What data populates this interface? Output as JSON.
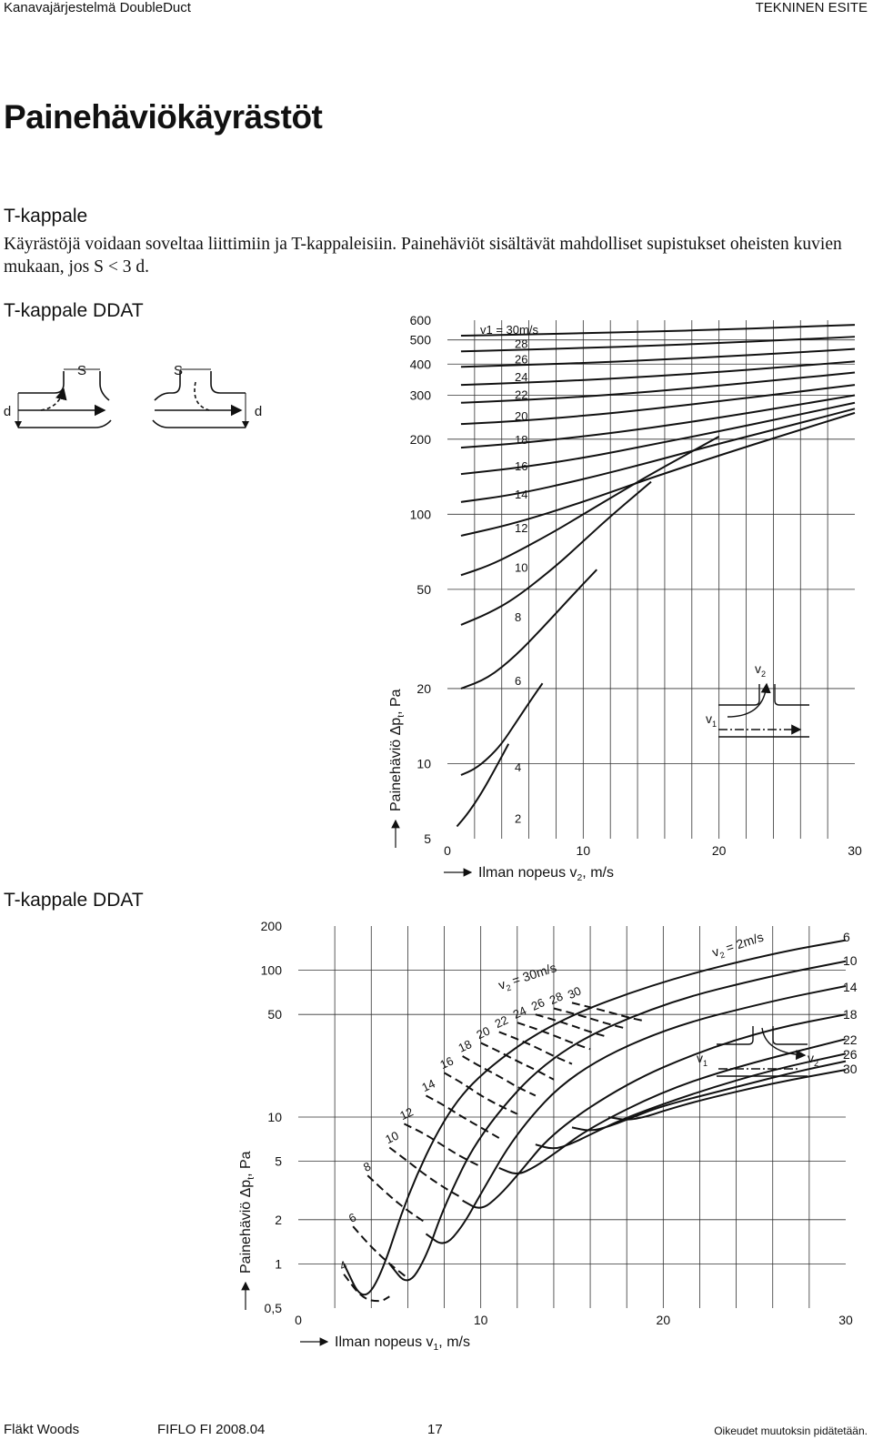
{
  "header": {
    "left": "Kanavajärjestelmä DoubleDuct",
    "right": "TEKNINEN ESITE"
  },
  "title": "Painehäviökäyrästöt",
  "section_title": "T-kappale",
  "intro": "Käyrästöjä voidaan soveltaa liittimiin ja T-kappaleisiin. Painehäviöt sisältävät mahdolliset supistukset oheisten kuvien mukaan, jos S < 3 d.",
  "subtitle_1": "T-kappale DDAT",
  "subtitle_2": "T-kappale DDAT",
  "diagram_labels": {
    "s": "S",
    "d": "d"
  },
  "footer": {
    "brand": "Fläkt Woods",
    "code": "FIFLO  FI  2008.04",
    "page": "17",
    "rights": "Oikeudet muutoksin pidätetään."
  },
  "chart_data": [
    {
      "type": "line",
      "scale": "y-log",
      "xlabel": "Ilman nopeus v",
      "xlabel_sub": "2",
      "xlabel_suffix": ", m/s",
      "ylabel": "Painehäviö Δp",
      "ylabel_sub": "t",
      "ylabel_suffix": ", Pa",
      "xlim": [
        0,
        30
      ],
      "ylim": [
        5,
        600
      ],
      "xticks": [
        "0",
        "10",
        "20",
        "30"
      ],
      "yticks": [
        "5",
        "10",
        "20",
        "50",
        "100",
        "200",
        "300",
        "400",
        "500",
        "600"
      ],
      "grid": true,
      "series_prefix": "v1 = ",
      "series_unit": "m/s",
      "inset_labels": {
        "v1": "v",
        "v1_sub": "1",
        "v2": "v",
        "v2_sub": "2"
      },
      "series": [
        {
          "name": "30",
          "x": [
            1,
            5,
            10,
            15,
            20,
            25,
            30
          ],
          "y": [
            520,
            525,
            532,
            540,
            550,
            562,
            575
          ]
        },
        {
          "name": "28",
          "x": [
            1,
            5,
            10,
            15,
            20,
            25,
            30
          ],
          "y": [
            450,
            456,
            464,
            474,
            486,
            500,
            515
          ]
        },
        {
          "name": "26",
          "x": [
            1,
            5,
            10,
            15,
            20,
            25,
            30
          ],
          "y": [
            390,
            396,
            404,
            415,
            428,
            443,
            460
          ]
        },
        {
          "name": "24",
          "x": [
            1,
            5,
            10,
            15,
            20,
            25,
            30
          ],
          "y": [
            330,
            336,
            345,
            357,
            372,
            390,
            410
          ]
        },
        {
          "name": "22",
          "x": [
            1,
            5,
            10,
            15,
            20,
            25,
            30
          ],
          "y": [
            280,
            286,
            296,
            310,
            328,
            348,
            370
          ]
        },
        {
          "name": "20",
          "x": [
            1,
            5,
            10,
            15,
            20,
            25,
            30
          ],
          "y": [
            230,
            236,
            248,
            264,
            284,
            306,
            330
          ]
        },
        {
          "name": "18",
          "x": [
            1,
            5,
            10,
            15,
            20,
            25,
            30
          ],
          "y": [
            185,
            192,
            205,
            222,
            244,
            270,
            300
          ]
        },
        {
          "name": "16",
          "x": [
            1,
            5,
            10,
            15,
            20,
            25,
            30
          ],
          "y": [
            145,
            153,
            168,
            190,
            215,
            245,
            280
          ]
        },
        {
          "name": "14",
          "x": [
            1,
            5,
            10,
            15,
            20,
            25,
            30
          ],
          "y": [
            112,
            120,
            138,
            162,
            192,
            225,
            265
          ]
        },
        {
          "name": "12",
          "x": [
            1,
            5,
            10,
            15,
            20,
            25,
            30
          ],
          "y": [
            82,
            92,
            112,
            140,
            172,
            210,
            255
          ]
        },
        {
          "name": "10",
          "x": [
            1,
            3,
            5,
            8,
            10,
            13,
            15,
            20
          ],
          "y": [
            57,
            62,
            70,
            86,
            100,
            125,
            145,
            205
          ]
        },
        {
          "name": "8",
          "x": [
            1,
            3,
            5,
            8,
            10,
            12,
            15
          ],
          "y": [
            36,
            40,
            46,
            62,
            78,
            98,
            135
          ]
        },
        {
          "name": "6",
          "x": [
            1,
            3,
            5,
            7,
            9,
            11
          ],
          "y": [
            20,
            22,
            27,
            35,
            46,
            60
          ]
        },
        {
          "name": "4",
          "x": [
            1,
            2,
            3,
            4,
            5,
            6,
            7
          ],
          "y": [
            9,
            9.5,
            10.5,
            12,
            14.5,
            17.5,
            21
          ]
        },
        {
          "name": "2",
          "x": [
            0.7,
            1.5,
            2.5,
            3.5,
            4.5
          ],
          "y": [
            5.6,
            6.3,
            7.6,
            9.5,
            12
          ]
        }
      ]
    },
    {
      "type": "line",
      "scale": "y-log",
      "xlabel": "Ilman nopeus v",
      "xlabel_sub": "1",
      "xlabel_suffix": ", m/s",
      "ylabel": "Painehäviö Δp",
      "ylabel_sub": "t",
      "ylabel_suffix": ", Pa",
      "xlim": [
        0,
        30
      ],
      "ylim": [
        0.5,
        200
      ],
      "xticks": [
        "0",
        "10",
        "20",
        "30"
      ],
      "yticks": [
        "0,5",
        "1",
        "2",
        "5",
        "10",
        "50",
        "100",
        "200"
      ],
      "grid": true,
      "solid_series_label_prefix": "v",
      "solid_series_label_sub": "2",
      "solid_series_label_suffix": " = 2m/s",
      "dashed_series_label_prefix": "v",
      "dashed_series_label_sub": "2",
      "dashed_series_label_suffix": " = 30m/s",
      "inset_labels": {
        "v1": "v",
        "v1_sub": "1",
        "v2": "v",
        "v2_sub": "2"
      },
      "series_solid": [
        {
          "name": "2",
          "x": [
            2.5,
            3.5,
            4.5,
            6,
            8,
            10,
            14,
            20,
            26,
            30
          ],
          "y": [
            1.0,
            0.55,
            0.8,
            3,
            10,
            20,
            45,
            85,
            130,
            160
          ]
        },
        {
          "name": "6",
          "x": [
            5,
            6,
            7,
            8,
            10,
            14,
            20,
            26,
            30
          ],
          "y": [
            1.0,
            0.7,
            1.1,
            2.5,
            8,
            28,
            60,
            92,
            115
          ]
        },
        {
          "name": "10",
          "x": [
            7,
            8,
            9,
            10,
            12,
            15,
            20,
            26,
            30
          ],
          "y": [
            1.6,
            1.3,
            1.8,
            3,
            8,
            20,
            40,
            62,
            78
          ]
        },
        {
          "name": "14",
          "x": [
            9,
            10,
            11,
            12,
            14,
            18,
            22,
            26,
            30
          ],
          "y": [
            2.7,
            2.3,
            2.9,
            4,
            8,
            17,
            28,
            40,
            50
          ]
        },
        {
          "name": "18",
          "x": [
            11,
            12,
            13,
            14,
            16,
            20,
            24,
            30
          ],
          "y": [
            4.5,
            4.0,
            4.6,
            5.6,
            8.5,
            15,
            22,
            34
          ]
        },
        {
          "name": "22",
          "x": [
            13,
            14,
            15,
            16,
            18,
            22,
            26,
            30
          ],
          "y": [
            6.5,
            6.0,
            6.6,
            7.6,
            10,
            15,
            21,
            27
          ]
        },
        {
          "name": "26",
          "x": [
            15,
            16,
            17,
            18,
            20,
            24,
            27,
            30
          ],
          "y": [
            8.5,
            8.0,
            8.6,
            9.6,
            12,
            16,
            20,
            24
          ]
        },
        {
          "name": "30",
          "x": [
            17,
            18,
            19,
            20,
            22,
            26,
            30
          ],
          "y": [
            10,
            9.5,
            10,
            11,
            13,
            17,
            21
          ]
        }
      ],
      "series_dashed": [
        {
          "name": "4",
          "x": [
            2.5,
            3.5,
            4.5,
            5
          ],
          "y": [
            0.85,
            0.58,
            0.55,
            0.6
          ]
        },
        {
          "name": "6",
          "x": [
            3,
            4,
            5,
            6
          ],
          "y": [
            1.8,
            1.3,
            1.0,
            0.8
          ]
        },
        {
          "name": "8",
          "x": [
            3.8,
            5,
            6,
            7
          ],
          "y": [
            4.0,
            2.9,
            2.3,
            1.9
          ]
        },
        {
          "name": "10",
          "x": [
            5,
            6,
            7,
            8,
            9
          ],
          "y": [
            6.2,
            5.0,
            4.0,
            3.3,
            2.8
          ]
        },
        {
          "name": "12",
          "x": [
            5.8,
            7,
            8,
            9,
            10
          ],
          "y": [
            9.0,
            7.6,
            6.3,
            5.3,
            4.6
          ]
        },
        {
          "name": "14",
          "x": [
            7,
            8,
            9,
            10,
            11
          ],
          "y": [
            14,
            12,
            10,
            8.5,
            7.2
          ]
        },
        {
          "name": "16",
          "x": [
            8,
            9,
            10,
            11,
            12
          ],
          "y": [
            20,
            17,
            14,
            12,
            10.5
          ]
        },
        {
          "name": "18",
          "x": [
            9,
            10,
            11,
            12,
            13
          ],
          "y": [
            26,
            22,
            19,
            16,
            14
          ]
        },
        {
          "name": "20",
          "x": [
            10,
            11,
            12,
            13,
            14
          ],
          "y": [
            32,
            28,
            24,
            21,
            18
          ]
        },
        {
          "name": "22",
          "x": [
            11,
            12,
            13,
            14,
            15
          ],
          "y": [
            38,
            34,
            30,
            26,
            23
          ]
        },
        {
          "name": "24",
          "x": [
            12,
            13,
            14,
            15,
            16
          ],
          "y": [
            44,
            40,
            36,
            32,
            29
          ]
        },
        {
          "name": "26",
          "x": [
            13,
            14,
            15,
            16,
            17
          ],
          "y": [
            50,
            46,
            42,
            38,
            35
          ]
        },
        {
          "name": "28",
          "x": [
            14,
            15,
            16,
            17,
            18
          ],
          "y": [
            55,
            51,
            47,
            43,
            40
          ]
        },
        {
          "name": "30",
          "x": [
            15,
            16,
            17,
            18,
            19
          ],
          "y": [
            60,
            56,
            52,
            48,
            45
          ]
        }
      ],
      "right_labels": [
        "6",
        "10",
        "14",
        "18",
        "22",
        "26",
        "30"
      ]
    }
  ]
}
